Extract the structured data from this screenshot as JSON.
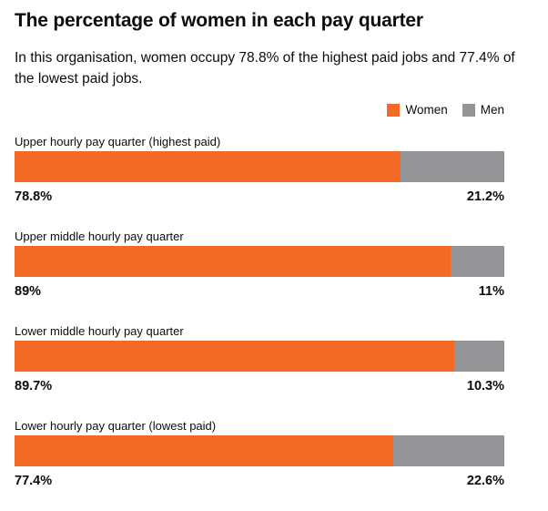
{
  "title": "The percentage of women in each pay quarter",
  "subtitle": "In this organisation, women occupy 78.8% of the highest paid jobs and 77.4% of the lowest paid jobs.",
  "colors": {
    "women": "#f46a25",
    "men": "#939598"
  },
  "chart_data": {
    "type": "bar",
    "orientation": "horizontal",
    "stacked": true,
    "legend_placement": "top-right",
    "xlim": [
      0,
      100
    ],
    "unit": "%",
    "legend": [
      "Women",
      "Men"
    ],
    "categories": [
      "Upper hourly pay quarter (highest paid)",
      "Upper middle hourly pay quarter",
      "Lower middle hourly pay quarter",
      "Lower hourly pay quarter (lowest paid)"
    ],
    "series": [
      {
        "name": "Women",
        "values": [
          78.8,
          89,
          89.7,
          77.4
        ],
        "labels": [
          "78.8%",
          "89%",
          "89.7%",
          "77.4%"
        ]
      },
      {
        "name": "Men",
        "values": [
          21.2,
          11,
          10.3,
          22.6
        ],
        "labels": [
          "21.2%",
          "11%",
          "10.3%",
          "22.6%"
        ]
      }
    ]
  }
}
